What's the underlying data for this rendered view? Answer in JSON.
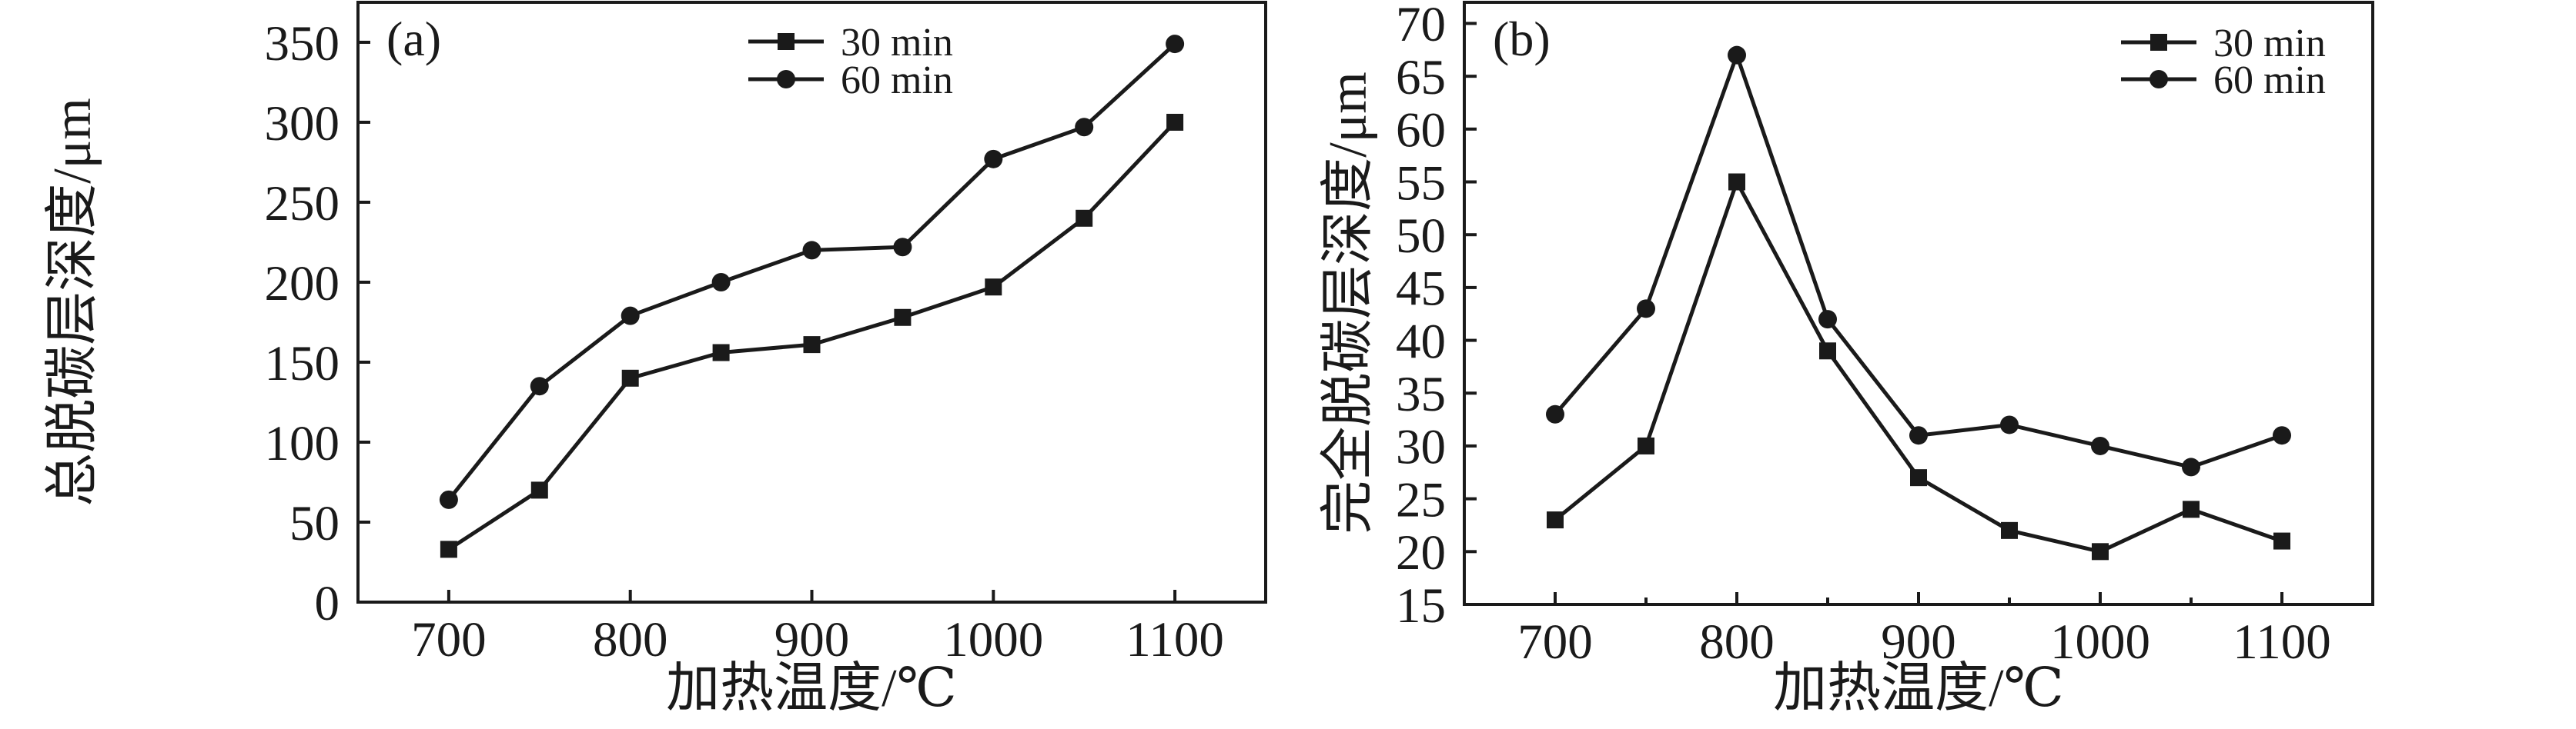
{
  "page": {
    "background": "#ffffff"
  },
  "colors": {
    "ink": "#1a1a1a"
  },
  "chart_data": [
    {
      "type": "line",
      "panel_label": "(a)",
      "xlabel": "加热温度/℃",
      "ylabel": "总脱碳层深度/μm",
      "x": [
        700,
        750,
        800,
        850,
        900,
        950,
        1000,
        1050,
        1100
      ],
      "series": [
        {
          "name": "30 min",
          "marker": "square",
          "values": [
            33,
            70,
            140,
            156,
            161,
            178,
            197,
            240,
            300
          ]
        },
        {
          "name": "60 min",
          "marker": "circle",
          "values": [
            64,
            135,
            179,
            200,
            220,
            222,
            277,
            297,
            349
          ]
        }
      ],
      "xlim": [
        650,
        1150
      ],
      "ylim": [
        0,
        375
      ],
      "xticks": [
        700,
        800,
        900,
        1000,
        1100
      ],
      "xminorticks": [],
      "yticks": [
        0,
        50,
        100,
        150,
        200,
        250,
        300,
        350
      ],
      "grid": false,
      "legend_position": "top-center-inside",
      "line_color": "#1a1a1a"
    },
    {
      "type": "line",
      "panel_label": "(b)",
      "xlabel": "加热温度/℃",
      "ylabel": "完全脱碳层深度/μm",
      "x": [
        700,
        750,
        800,
        850,
        900,
        950,
        1000,
        1050,
        1100
      ],
      "series": [
        {
          "name": "30 min",
          "marker": "square",
          "values": [
            23,
            30,
            55,
            39,
            27,
            22,
            20,
            24,
            21
          ]
        },
        {
          "name": "60 min",
          "marker": "circle",
          "values": [
            33,
            43,
            67,
            42,
            31,
            32,
            30,
            28,
            31
          ]
        }
      ],
      "xlim": [
        650,
        1150
      ],
      "ylim": [
        15,
        72
      ],
      "xticks": [
        700,
        800,
        900,
        1000,
        1100
      ],
      "xminorticks": [
        750,
        850,
        950,
        1050
      ],
      "yticks": [
        15,
        20,
        25,
        30,
        35,
        40,
        45,
        50,
        55,
        60,
        65,
        70
      ],
      "grid": false,
      "legend_position": "top-right-inside",
      "line_color": "#1a1a1a"
    }
  ]
}
